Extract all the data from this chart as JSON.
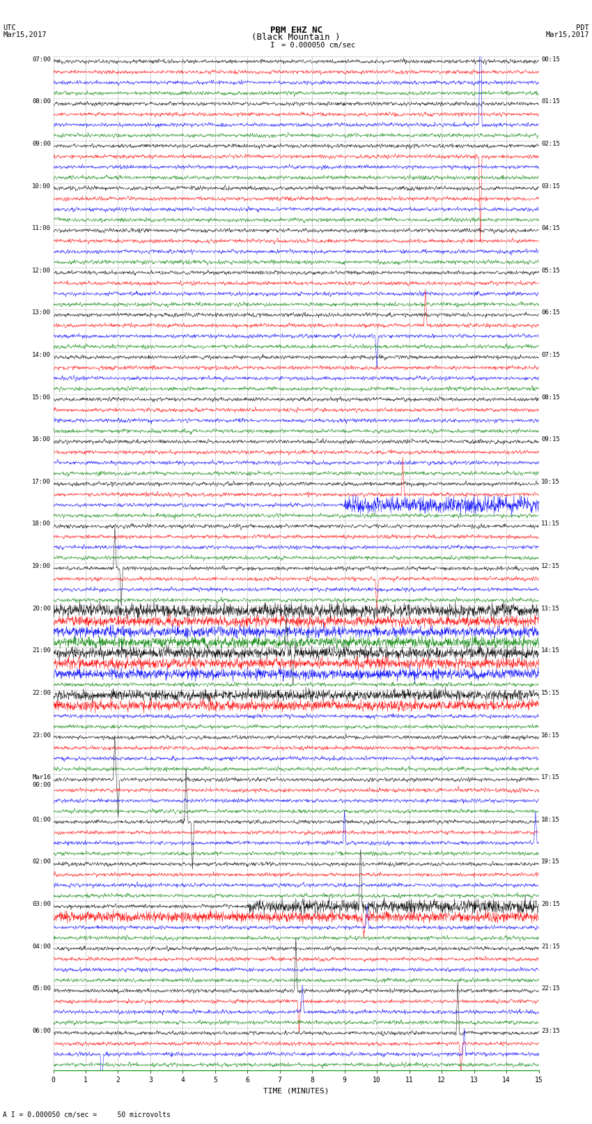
{
  "title_line1": "PBM EHZ NC",
  "title_line2": "(Black Mountain )",
  "scale_text": "I = 0.000050 cm/sec",
  "bottom_note": "A I = 0.000050 cm/sec =     50 microvolts",
  "xlabel": "TIME (MINUTES)",
  "bg_color": "#ffffff",
  "trace_colors": [
    "black",
    "red",
    "blue",
    "green"
  ],
  "minutes_per_row": 15,
  "n_hours": 24,
  "traces_per_hour": 4,
  "fig_width": 8.5,
  "fig_height": 16.13,
  "dpi": 100,
  "base_noise_amp": 0.12,
  "left_labels_utc": [
    "07:00",
    "08:00",
    "09:00",
    "10:00",
    "11:00",
    "12:00",
    "13:00",
    "14:00",
    "15:00",
    "16:00",
    "17:00",
    "18:00",
    "19:00",
    "20:00",
    "21:00",
    "22:00",
    "23:00",
    "Mar16\n00:00",
    "01:00",
    "02:00",
    "03:00",
    "04:00",
    "05:00",
    "06:00"
  ],
  "right_labels_pdt": [
    "00:15",
    "01:15",
    "02:15",
    "03:15",
    "04:15",
    "05:15",
    "06:15",
    "07:15",
    "08:15",
    "09:15",
    "10:15",
    "11:15",
    "12:15",
    "13:15",
    "14:15",
    "15:15",
    "16:15",
    "17:15",
    "18:15",
    "19:15",
    "20:15",
    "21:15",
    "22:15",
    "23:15"
  ],
  "spike_events": [
    {
      "hour": 1,
      "trace": 2,
      "minute": 13.2,
      "amplitude": 12.0
    },
    {
      "hour": 2,
      "trace": 1,
      "minute": 13.2,
      "amplitude": -8.0
    },
    {
      "hour": 6,
      "trace": 1,
      "minute": 11.5,
      "amplitude": 3.5
    },
    {
      "hour": 6,
      "trace": 2,
      "minute": 10.0,
      "amplitude": -3.0
    },
    {
      "hour": 10,
      "trace": 1,
      "minute": 10.8,
      "amplitude": 3.5
    },
    {
      "hour": 12,
      "trace": 1,
      "minute": 10.0,
      "amplitude": -3.0
    },
    {
      "hour": 18,
      "trace": 2,
      "minute": 9.0,
      "amplitude": 3.0
    },
    {
      "hour": 12,
      "trace": 0,
      "minute": 1.9,
      "amplitude": 4.0
    },
    {
      "hour": 12,
      "trace": 0,
      "minute": 2.1,
      "amplitude": -3.5
    },
    {
      "hour": 14,
      "trace": 0,
      "minute": 7.2,
      "amplitude": 3.5
    },
    {
      "hour": 14,
      "trace": 0,
      "minute": 7.4,
      "amplitude": -3.0
    },
    {
      "hour": 18,
      "trace": 0,
      "minute": 4.1,
      "amplitude": 5.0
    },
    {
      "hour": 18,
      "trace": 0,
      "minute": 4.3,
      "amplitude": -4.5
    },
    {
      "hour": 17,
      "trace": 0,
      "minute": 1.9,
      "amplitude": 4.0
    },
    {
      "hour": 17,
      "trace": 0,
      "minute": 2.0,
      "amplitude": -3.5
    },
    {
      "hour": 20,
      "trace": 0,
      "minute": 9.5,
      "amplitude": 6.0
    },
    {
      "hour": 20,
      "trace": 1,
      "minute": 9.6,
      "amplitude": -2.0
    },
    {
      "hour": 20,
      "trace": 2,
      "minute": 9.7,
      "amplitude": 2.0
    },
    {
      "hour": 22,
      "trace": 0,
      "minute": 7.5,
      "amplitude": 5.0
    },
    {
      "hour": 22,
      "trace": 1,
      "minute": 7.6,
      "amplitude": -3.0
    },
    {
      "hour": 22,
      "trace": 2,
      "minute": 7.7,
      "amplitude": 2.5
    },
    {
      "hour": 23,
      "trace": 0,
      "minute": 12.5,
      "amplitude": 5.0
    },
    {
      "hour": 23,
      "trace": 1,
      "minute": 12.6,
      "amplitude": -3.0
    },
    {
      "hour": 23,
      "trace": 2,
      "minute": 12.7,
      "amplitude": 2.5
    },
    {
      "hour": 18,
      "trace": 2,
      "minute": 14.9,
      "amplitude": 3.0
    },
    {
      "hour": 23,
      "trace": 2,
      "minute": 1.5,
      "amplitude": -4.0
    }
  ],
  "noisy_sections": [
    {
      "hour": 10,
      "trace": 2,
      "start": 9.0,
      "end": 15.0,
      "amp_mult": 3.0
    },
    {
      "hour": 13,
      "trace": 0,
      "start": 0.0,
      "end": 15.0,
      "amp_mult": 2.5
    },
    {
      "hour": 13,
      "trace": 1,
      "start": 0.0,
      "end": 15.0,
      "amp_mult": 2.0
    },
    {
      "hour": 13,
      "trace": 2,
      "start": 0.0,
      "end": 15.0,
      "amp_mult": 2.0
    },
    {
      "hour": 13,
      "trace": 3,
      "start": 0.0,
      "end": 15.0,
      "amp_mult": 2.0
    },
    {
      "hour": 14,
      "trace": 0,
      "start": 0.0,
      "end": 15.0,
      "amp_mult": 2.2
    },
    {
      "hour": 14,
      "trace": 1,
      "start": 0.0,
      "end": 15.0,
      "amp_mult": 2.0
    },
    {
      "hour": 14,
      "trace": 2,
      "start": 0.0,
      "end": 15.0,
      "amp_mult": 2.0
    },
    {
      "hour": 15,
      "trace": 0,
      "start": 0.0,
      "end": 15.0,
      "amp_mult": 2.0
    },
    {
      "hour": 15,
      "trace": 1,
      "start": 0.0,
      "end": 15.0,
      "amp_mult": 2.0
    },
    {
      "hour": 20,
      "trace": 0,
      "start": 6.0,
      "end": 15.0,
      "amp_mult": 2.5
    },
    {
      "hour": 20,
      "trace": 1,
      "start": 0.0,
      "end": 15.0,
      "amp_mult": 2.0
    }
  ]
}
